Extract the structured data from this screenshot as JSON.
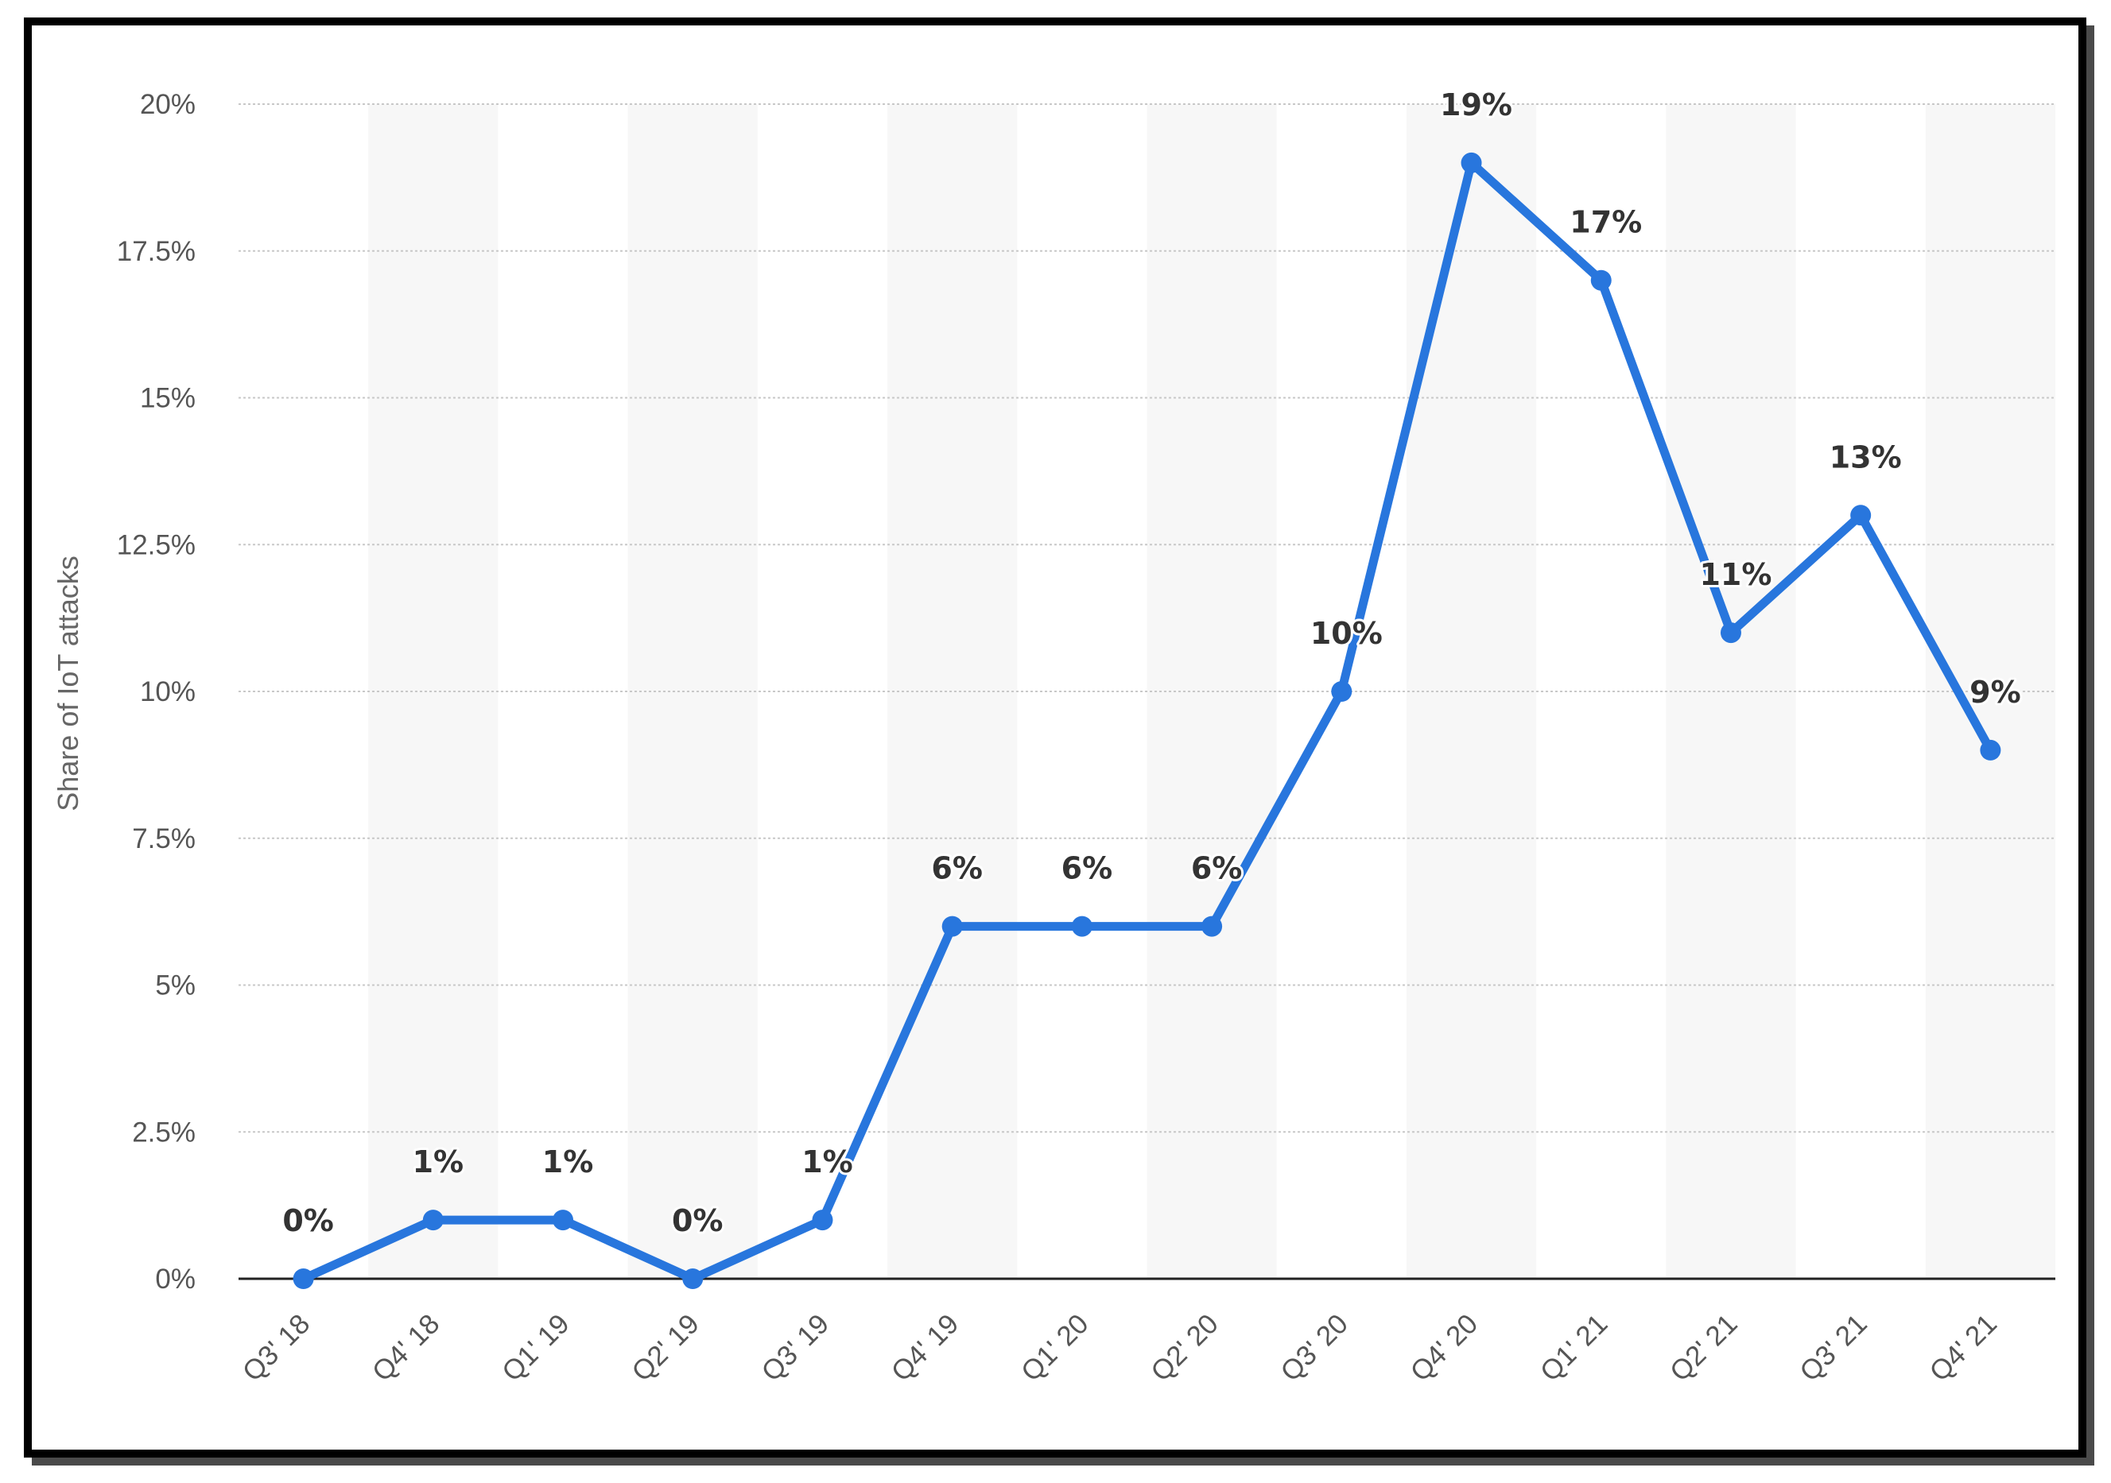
{
  "chart_data": {
    "type": "line",
    "title": "",
    "xlabel": "",
    "ylabel": "Share of IoT attacks",
    "categories": [
      "Q3' 18",
      "Q4' 18",
      "Q1' 19",
      "Q2' 19",
      "Q3' 19",
      "Q4' 19",
      "Q1' 20",
      "Q2' 20",
      "Q3' 20",
      "Q4' 20",
      "Q1' 21",
      "Q2' 21",
      "Q3' 21",
      "Q4' 21"
    ],
    "values": [
      0,
      1,
      1,
      0,
      1,
      6,
      6,
      6,
      10,
      19,
      17,
      11,
      13,
      9
    ],
    "data_labels": [
      "0%",
      "1%",
      "1%",
      "0%",
      "1%",
      "6%",
      "6%",
      "6%",
      "10%",
      "19%",
      "17%",
      "11%",
      "13%",
      "9%"
    ],
    "ylim": [
      0,
      20
    ],
    "yticks": [
      0,
      2.5,
      5,
      7.5,
      10,
      12.5,
      15,
      17.5,
      20
    ],
    "ytick_labels": [
      "0%",
      "2.5%",
      "5%",
      "7.5%",
      "10%",
      "12.5%",
      "15%",
      "17.5%",
      "20%"
    ],
    "grid": true,
    "legend": "none",
    "colors": {
      "line": "#2876dd",
      "band": "#f7f7f7",
      "grid": "#c8c8c8",
      "axis": "#222222"
    }
  }
}
